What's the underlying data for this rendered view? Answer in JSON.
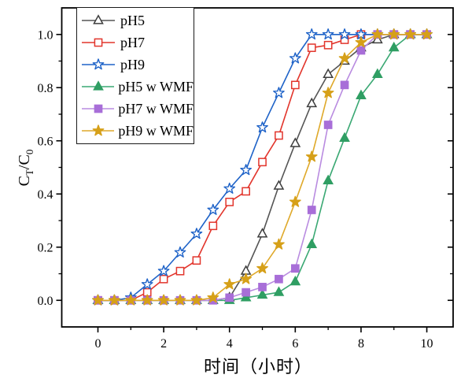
{
  "chart_data": {
    "type": "line",
    "title": "",
    "xlabel": "时间（小时）",
    "ylabel": "C_T/C_0",
    "ylabel_parts": {
      "c1": "C",
      "s1": "T",
      "sep": "/",
      "c2": "C",
      "s2": "0"
    },
    "xlim": [
      -1.1,
      10.8
    ],
    "ylim": [
      -0.1,
      1.1
    ],
    "grid": false,
    "legend_position": "top-left",
    "x_major_ticks": [
      0,
      2,
      4,
      6,
      8,
      10
    ],
    "x_minor_ticks": [
      1,
      3,
      5,
      7,
      9
    ],
    "y_major_ticks": [
      0.0,
      0.2,
      0.4,
      0.6,
      0.8,
      1.0
    ],
    "y_minor_ticks": [
      0.1,
      0.3,
      0.5,
      0.7,
      0.9
    ],
    "x_tick_labels": [
      "0",
      "2",
      "4",
      "6",
      "8",
      "10"
    ],
    "y_tick_labels": [
      "0.0",
      "0.2",
      "0.4",
      "0.6",
      "0.8",
      "1.0"
    ],
    "x": [
      0,
      0.5,
      1,
      1.5,
      2,
      2.5,
      3,
      3.5,
      4,
      4.5,
      5,
      5.5,
      6,
      6.5,
      7,
      7.5,
      8,
      8.5,
      9,
      9.5,
      10
    ],
    "series": [
      {
        "name": "pH5",
        "color": "#3d3d3d",
        "line_color": "#555555",
        "marker": "triangle",
        "fill": "open",
        "values": [
          0,
          0,
          0,
          0,
          0,
          0,
          0,
          0,
          0.01,
          0.11,
          0.25,
          0.43,
          0.59,
          0.74,
          0.85,
          0.9,
          0.95,
          0.98,
          1,
          1,
          1
        ]
      },
      {
        "name": "pH7",
        "color": "#e2352c",
        "line_color": "#e2352c",
        "marker": "square",
        "fill": "open",
        "values": [
          0,
          0,
          0,
          0.03,
          0.08,
          0.11,
          0.15,
          0.28,
          0.37,
          0.41,
          0.52,
          0.62,
          0.81,
          0.95,
          0.96,
          0.98,
          1,
          1,
          1,
          1,
          1
        ]
      },
      {
        "name": "pH9",
        "color": "#1f63c8",
        "line_color": "#1f63c8",
        "marker": "star",
        "fill": "open",
        "values": [
          0,
          0,
          0.01,
          0.06,
          0.11,
          0.18,
          0.25,
          0.34,
          0.42,
          0.49,
          0.65,
          0.78,
          0.91,
          1,
          1,
          1,
          1,
          1,
          1,
          1,
          1
        ]
      },
      {
        "name": "pH5 w WMF",
        "color": "#2f9e63",
        "line_color": "#3aa873",
        "marker": "triangle",
        "fill": "solid",
        "values": [
          0,
          0,
          0,
          0,
          0,
          0,
          0,
          0,
          0,
          0.01,
          0.02,
          0.03,
          0.07,
          0.21,
          0.45,
          0.61,
          0.77,
          0.85,
          0.95,
          1,
          1
        ]
      },
      {
        "name": "pH7 w WMF",
        "color": "#a86ed8",
        "line_color": "#b98be0",
        "marker": "square",
        "fill": "solid",
        "values": [
          0,
          0,
          0,
          0,
          0,
          0,
          0,
          0,
          0.01,
          0.03,
          0.05,
          0.08,
          0.12,
          0.34,
          0.66,
          0.81,
          0.94,
          1,
          1,
          1,
          1
        ]
      },
      {
        "name": "pH9 w WMF",
        "color": "#d6a019",
        "line_color": "#dfa92a",
        "marker": "star",
        "fill": "solid",
        "values": [
          0,
          0,
          0,
          0,
          0,
          0,
          0,
          0.01,
          0.06,
          0.08,
          0.12,
          0.21,
          0.37,
          0.54,
          0.78,
          0.91,
          0.97,
          1,
          1,
          1,
          1
        ]
      }
    ]
  },
  "colors": {
    "axis": "#000000",
    "background": "#ffffff"
  }
}
